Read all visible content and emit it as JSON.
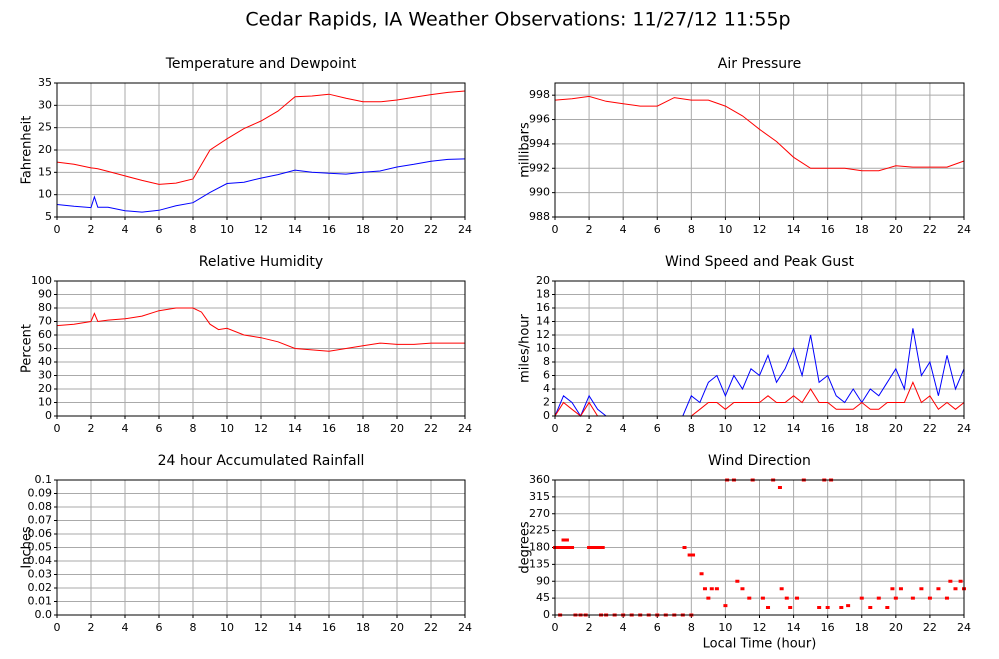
{
  "title": "Cedar Rapids, IA Weather Observations: 11/27/12 11:55p",
  "chart_data": [
    {
      "type": "line",
      "title": "Temperature and Dewpoint",
      "ylabel": "Fahrenheit",
      "xlim": [
        0,
        24
      ],
      "xticks": [
        0,
        2,
        4,
        6,
        8,
        10,
        12,
        14,
        16,
        18,
        20,
        22,
        24
      ],
      "ylim": [
        5,
        35
      ],
      "yticks": [
        5,
        10,
        15,
        20,
        25,
        30,
        35
      ],
      "grid": true,
      "x": [
        0,
        1,
        2,
        2.2,
        2.4,
        3,
        4,
        5,
        6,
        7,
        8,
        9,
        10,
        11,
        12,
        13,
        14,
        15,
        16,
        17,
        18,
        19,
        20,
        21,
        22,
        23,
        24
      ],
      "series": [
        {
          "color": "#ff0000",
          "values": [
            17.3,
            16.8,
            16,
            15.9,
            15.8,
            15.2,
            14.2,
            13.2,
            12.3,
            12.6,
            13.5,
            20,
            22.5,
            24.8,
            26.5,
            28.7,
            31.9,
            32.1,
            32.5,
            31.6,
            30.8,
            30.8,
            31.2,
            31.8,
            32.4,
            32.9,
            33.2
          ]
        },
        {
          "color": "#0000ff",
          "values": [
            7.8,
            7.4,
            7.1,
            9.5,
            7.2,
            7.2,
            6.4,
            6.1,
            6.5,
            7.5,
            8.2,
            10.5,
            12.5,
            12.8,
            13.7,
            14.5,
            15.5,
            15,
            14.8,
            14.6,
            15,
            15.3,
            16.2,
            16.8,
            17.5,
            17.9,
            18
          ]
        }
      ]
    },
    {
      "type": "line",
      "title": "Air Pressure",
      "ylabel": "millibars",
      "xlim": [
        0,
        24
      ],
      "xticks": [
        0,
        2,
        4,
        6,
        8,
        10,
        12,
        14,
        16,
        18,
        20,
        22,
        24
      ],
      "ylim": [
        988,
        999
      ],
      "yticks": [
        988,
        990,
        992,
        994,
        996,
        998
      ],
      "grid": true,
      "x": [
        0,
        1,
        2,
        3,
        4,
        5,
        6,
        7,
        8,
        9,
        10,
        11,
        12,
        13,
        14,
        15,
        16,
        17,
        18,
        19,
        20,
        21,
        22,
        23,
        24
      ],
      "series": [
        {
          "color": "#ff0000",
          "values": [
            997.6,
            997.7,
            997.9,
            997.5,
            997.3,
            997.1,
            997.1,
            997.8,
            997.6,
            997.6,
            997.1,
            996.3,
            995.2,
            994.2,
            992.9,
            992,
            992,
            992,
            991.8,
            991.8,
            992.2,
            992.1,
            992.1,
            992.1,
            992.6
          ]
        }
      ]
    },
    {
      "type": "line",
      "title": "Relative Humidity",
      "ylabel": "Percent",
      "xlim": [
        0,
        24
      ],
      "xticks": [
        0,
        2,
        4,
        6,
        8,
        10,
        12,
        14,
        16,
        18,
        20,
        22,
        24
      ],
      "ylim": [
        0,
        100
      ],
      "yticks": [
        0,
        10,
        20,
        30,
        40,
        50,
        60,
        70,
        80,
        90,
        100
      ],
      "grid": true,
      "x": [
        0,
        1,
        2,
        2.2,
        2.4,
        3,
        4,
        5,
        6,
        7,
        8,
        8.5,
        9,
        9.5,
        10,
        11,
        12,
        13,
        14,
        15,
        16,
        17,
        18,
        19,
        20,
        21,
        22,
        23,
        24
      ],
      "series": [
        {
          "color": "#ff0000",
          "values": [
            67,
            68,
            70,
            76,
            70,
            71,
            72,
            74,
            78,
            80,
            80,
            77,
            68,
            64,
            65,
            60,
            58,
            55,
            50,
            49,
            48,
            50,
            52,
            54,
            53,
            53,
            54,
            54,
            54
          ]
        }
      ]
    },
    {
      "type": "line",
      "title": "Wind Speed and Peak Gust",
      "ylabel": "miles/hour",
      "xlim": [
        0,
        24
      ],
      "xticks": [
        0,
        2,
        4,
        6,
        8,
        10,
        12,
        14,
        16,
        18,
        20,
        22,
        24
      ],
      "ylim": [
        0,
        20
      ],
      "yticks": [
        0,
        2,
        4,
        6,
        8,
        10,
        12,
        14,
        16,
        18,
        20
      ],
      "grid": true,
      "x": [
        0,
        0.5,
        1,
        1.5,
        2,
        2.5,
        3,
        3.5,
        4,
        4.5,
        5,
        5.5,
        6,
        6.5,
        7,
        7.5,
        8,
        8.5,
        9,
        9.5,
        10,
        10.5,
        11,
        11.5,
        12,
        12.5,
        13,
        13.5,
        14,
        14.5,
        15,
        15.5,
        16,
        16.5,
        17,
        17.5,
        18,
        18.5,
        19,
        19.5,
        20,
        20.5,
        21,
        21.5,
        22,
        22.5,
        23,
        23.5,
        24
      ],
      "series": [
        {
          "color": "#0000ff",
          "values": [
            0,
            3,
            2,
            0,
            3,
            1,
            0,
            0,
            0,
            0,
            0,
            0,
            0,
            0,
            0,
            0,
            3,
            2,
            5,
            6,
            3,
            6,
            4,
            7,
            6,
            9,
            5,
            7,
            10,
            6,
            12,
            5,
            6,
            3,
            2,
            4,
            2,
            4,
            3,
            5,
            7,
            4,
            13,
            6,
            8,
            3,
            9,
            4,
            7
          ]
        },
        {
          "color": "#ff0000",
          "values": [
            0,
            2,
            1,
            0,
            2,
            0,
            0,
            0,
            0,
            0,
            0,
            0,
            0,
            0,
            0,
            0,
            0,
            1,
            2,
            2,
            1,
            2,
            2,
            2,
            2,
            3,
            2,
            2,
            3,
            2,
            4,
            2,
            2,
            1,
            1,
            1,
            2,
            1,
            1,
            2,
            2,
            2,
            5,
            2,
            3,
            1,
            2,
            1,
            2
          ]
        }
      ]
    },
    {
      "type": "line",
      "title": "24 hour Accumulated Rainfall",
      "ylabel": "Inches",
      "xlim": [
        0,
        24
      ],
      "xticks": [
        0,
        2,
        4,
        6,
        8,
        10,
        12,
        14,
        16,
        18,
        20,
        22,
        24
      ],
      "ylim": [
        0,
        0.1
      ],
      "yticks": [
        {
          "value": 0,
          "label": "0.0"
        },
        0.01,
        0.02,
        0.03,
        0.04,
        0.05,
        0.06,
        0.07,
        0.08,
        0.09,
        0.1
      ],
      "grid": true,
      "x": [
        0,
        24
      ],
      "series": [
        {
          "color": "#ff0000",
          "values": [
            0,
            0
          ]
        }
      ]
    },
    {
      "type": "scatter",
      "title": "Wind Direction",
      "ylabel": "degrees",
      "xlabel": "Local Time (hour)",
      "xlim": [
        0,
        24
      ],
      "xticks": [
        0,
        2,
        4,
        6,
        8,
        10,
        12,
        14,
        16,
        18,
        20,
        22,
        24
      ],
      "ylim": [
        0,
        360
      ],
      "yticks": [
        0,
        45,
        90,
        135,
        180,
        225,
        270,
        315,
        360
      ],
      "grid": true,
      "x": [
        0,
        0.2,
        0.4,
        0.6,
        0.8,
        1.0,
        0.5,
        0.7,
        0.3,
        2,
        2.2,
        2.4,
        2.6,
        2.8,
        1.2,
        1.5,
        1.8,
        2.7,
        3,
        3.5,
        4,
        4.5,
        5,
        5.5,
        6,
        6.5,
        7,
        7.5,
        8,
        7.6,
        7.9,
        8.1,
        8.6,
        8.8,
        9.2,
        9.5,
        9.0,
        10.0,
        10.1,
        10.5,
        11.6,
        12.8,
        14.6,
        15.8,
        16.2,
        10.7,
        11.0,
        11.4,
        12.2,
        13.6,
        12.5,
        13.8,
        15.5,
        16.0,
        16.8,
        13.2,
        13.3,
        14.2,
        17.2,
        18,
        19,
        20,
        21,
        22,
        23,
        18.5,
        19.5,
        19.8,
        20.3,
        21.5,
        22.5,
        23.5,
        23.2,
        23.8,
        24
      ],
      "series": [
        {
          "color": "#ff0000",
          "values": [
            180,
            180,
            180,
            180,
            180,
            180,
            200,
            200,
            0,
            180,
            180,
            180,
            180,
            180,
            0,
            0,
            0,
            0,
            0,
            0,
            0,
            0,
            0,
            0,
            0,
            0,
            0,
            0,
            0,
            180,
            160,
            160,
            110,
            70,
            70,
            70,
            45,
            25,
            360,
            360,
            360,
            360,
            360,
            360,
            360,
            90,
            70,
            45,
            45,
            45,
            20,
            20,
            20,
            20,
            20,
            340,
            70,
            45,
            25,
            45,
            45,
            45,
            45,
            45,
            45,
            20,
            20,
            70,
            70,
            70,
            70,
            70,
            90,
            90,
            70
          ]
        }
      ]
    }
  ]
}
